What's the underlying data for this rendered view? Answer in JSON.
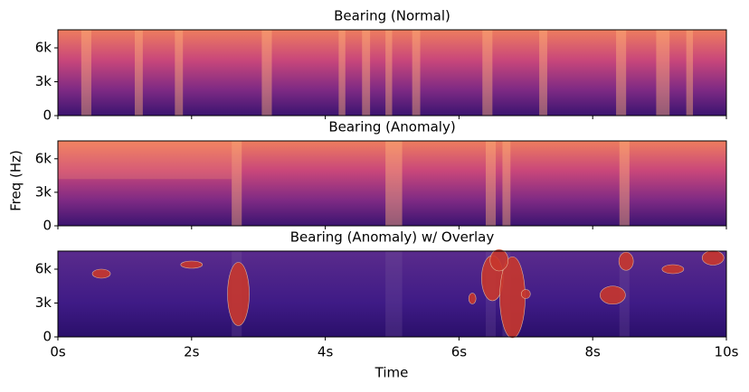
{
  "chart_data": {
    "type": "spectrogram",
    "xlabel": "Time",
    "ylabel": "Freq (Hz)",
    "xlim": [
      0,
      10
    ],
    "xticks": [
      {
        "value": 0,
        "label": "0s"
      },
      {
        "value": 2,
        "label": "2s"
      },
      {
        "value": 4,
        "label": "4s"
      },
      {
        "value": 6,
        "label": "6s"
      },
      {
        "value": 8,
        "label": "8s"
      },
      {
        "value": 10,
        "label": "10s"
      }
    ],
    "ylim": [
      0,
      7600
    ],
    "yticks": [
      0,
      {
        "value": 3000,
        "label": "3k"
      },
      {
        "value": 6000,
        "label": "6k"
      }
    ],
    "panels": [
      {
        "title": "Bearing (Normal)"
      },
      {
        "title": "Bearing (Anomaly)"
      },
      {
        "title": "Bearing (Anomaly) w/ Overlay"
      }
    ]
  }
}
